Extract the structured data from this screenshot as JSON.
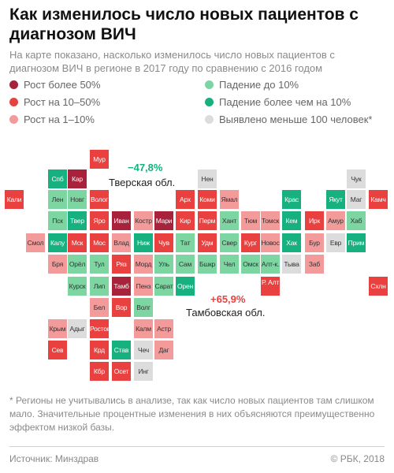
{
  "title": "Как изменилось число новых пациентов с диагнозом ВИЧ",
  "subtitle": "На карте показано, насколько изменилось число новых пациентов с диагнозом ВИЧ в регионе в 2017 году по сравнению с 2016 годом",
  "colors": {
    "growth_over_50": "#a7223a",
    "growth_10_50": "#e8413f",
    "growth_1_10": "#f39a9a",
    "decline_up_to_10": "#7dd6a2",
    "decline_over_10": "#17b07f",
    "under_100": "#dcdcdc"
  },
  "legend": [
    {
      "key": "growth_over_50",
      "label": "Рост более 50%"
    },
    {
      "key": "growth_10_50",
      "label": "Рост на 10–50%"
    },
    {
      "key": "growth_1_10",
      "label": "Рост на 1–10%"
    },
    {
      "key": "decline_up_to_10",
      "label": "Падение до 10%"
    },
    {
      "key": "decline_over_10",
      "label": "Падение более чем на 10%"
    },
    {
      "key": "under_100",
      "label": "Выявлено меньше 100 человек*"
    }
  ],
  "regions": [
    {
      "label": "Мур",
      "cat": "growth_10_50"
    },
    {
      "label": "Спб",
      "cat": "decline_over_10"
    },
    {
      "label": "Кар",
      "cat": "growth_over_50"
    },
    {
      "label": "Нен",
      "cat": "under_100"
    },
    {
      "label": "Чук",
      "cat": "under_100"
    },
    {
      "label": "Кали",
      "cat": "growth_10_50"
    },
    {
      "label": "Лен",
      "cat": "decline_up_to_10"
    },
    {
      "label": "Новг",
      "cat": "decline_up_to_10"
    },
    {
      "label": "Волог",
      "cat": "growth_10_50"
    },
    {
      "label": "Арх",
      "cat": "growth_10_50"
    },
    {
      "label": "Коми",
      "cat": "growth_10_50"
    },
    {
      "label": "Ямал",
      "cat": "growth_1_10"
    },
    {
      "label": "Крас",
      "cat": "decline_over_10"
    },
    {
      "label": "Якут",
      "cat": "decline_over_10"
    },
    {
      "label": "Маг",
      "cat": "under_100"
    },
    {
      "label": "Камч",
      "cat": "growth_10_50"
    },
    {
      "label": "Пск",
      "cat": "decline_up_to_10"
    },
    {
      "label": "Твер",
      "cat": "decline_over_10"
    },
    {
      "label": "Яро",
      "cat": "growth_10_50"
    },
    {
      "label": "Иван",
      "cat": "growth_over_50"
    },
    {
      "label": "Костр",
      "cat": "growth_1_10"
    },
    {
      "label": "Мари",
      "cat": "growth_over_50"
    },
    {
      "label": "Кир",
      "cat": "growth_10_50"
    },
    {
      "label": "Перм",
      "cat": "growth_10_50"
    },
    {
      "label": "Хант",
      "cat": "decline_up_to_10"
    },
    {
      "label": "Тюм",
      "cat": "growth_1_10"
    },
    {
      "label": "Томск",
      "cat": "growth_1_10"
    },
    {
      "label": "Кем",
      "cat": "decline_over_10"
    },
    {
      "label": "Ирк",
      "cat": "growth_10_50"
    },
    {
      "label": "Амур",
      "cat": "growth_1_10"
    },
    {
      "label": "Хаб",
      "cat": "decline_up_to_10"
    },
    {
      "label": "Смол",
      "cat": "growth_1_10"
    },
    {
      "label": "Калу",
      "cat": "decline_over_10"
    },
    {
      "label": "Мск",
      "cat": "growth_10_50"
    },
    {
      "label": "Мос",
      "cat": "growth_10_50"
    },
    {
      "label": "Влад",
      "cat": "growth_1_10"
    },
    {
      "label": "Ниж",
      "cat": "decline_over_10"
    },
    {
      "label": "Чув",
      "cat": "growth_10_50"
    },
    {
      "label": "Тат",
      "cat": "decline_up_to_10"
    },
    {
      "label": "Удм",
      "cat": "growth_10_50"
    },
    {
      "label": "Свер",
      "cat": "decline_up_to_10"
    },
    {
      "label": "Кург",
      "cat": "growth_10_50"
    },
    {
      "label": "Новос",
      "cat": "growth_1_10"
    },
    {
      "label": "Хак",
      "cat": "decline_over_10"
    },
    {
      "label": "Бур",
      "cat": "growth_1_10"
    },
    {
      "label": "Евр",
      "cat": "under_100"
    },
    {
      "label": "Прим",
      "cat": "decline_over_10"
    },
    {
      "label": "Бря",
      "cat": "growth_1_10"
    },
    {
      "label": "Орёл",
      "cat": "decline_up_to_10"
    },
    {
      "label": "Тул",
      "cat": "decline_up_to_10"
    },
    {
      "label": "Ряз",
      "cat": "growth_10_50"
    },
    {
      "label": "Морд",
      "cat": "growth_1_10"
    },
    {
      "label": "Уль",
      "cat": "decline_up_to_10"
    },
    {
      "label": "Сам",
      "cat": "decline_up_to_10"
    },
    {
      "label": "Бшкр",
      "cat": "decline_up_to_10"
    },
    {
      "label": "Чел",
      "cat": "decline_up_to_10"
    },
    {
      "label": "Омск",
      "cat": "decline_up_to_10"
    },
    {
      "label": "Алт-к.",
      "cat": "decline_up_to_10"
    },
    {
      "label": "Тыва",
      "cat": "under_100"
    },
    {
      "label": "Заб",
      "cat": "growth_1_10"
    },
    {
      "label": "Курск",
      "cat": "decline_up_to_10"
    },
    {
      "label": "Лип",
      "cat": "decline_up_to_10"
    },
    {
      "label": "Тамб",
      "cat": "growth_over_50"
    },
    {
      "label": "Пенз",
      "cat": "growth_1_10"
    },
    {
      "label": "Сарат",
      "cat": "decline_up_to_10"
    },
    {
      "label": "Орен",
      "cat": "decline_over_10"
    },
    {
      "label": "Р. Алт",
      "cat": "growth_10_50"
    },
    {
      "label": "Схлн",
      "cat": "growth_10_50"
    },
    {
      "label": "Бел",
      "cat": "growth_1_10"
    },
    {
      "label": "Вор",
      "cat": "growth_10_50"
    },
    {
      "label": "Волг",
      "cat": "decline_up_to_10"
    },
    {
      "label": "Крым",
      "cat": "growth_1_10"
    },
    {
      "label": "Адыг",
      "cat": "under_100"
    },
    {
      "label": "Ростов",
      "cat": "growth_10_50"
    },
    {
      "label": "Калм",
      "cat": "growth_1_10"
    },
    {
      "label": "Астр",
      "cat": "growth_1_10"
    },
    {
      "label": "Сев",
      "cat": "growth_10_50"
    },
    {
      "label": "Крд",
      "cat": "growth_10_50"
    },
    {
      "label": "Став",
      "cat": "decline_over_10"
    },
    {
      "label": "Чеч",
      "cat": "under_100"
    },
    {
      "label": "Даг",
      "cat": "growth_1_10"
    },
    {
      "label": "Кбр",
      "cat": "growth_10_50"
    },
    {
      "label": "Осет",
      "cat": "growth_10_50"
    },
    {
      "label": "Инг",
      "cat": "under_100"
    }
  ],
  "annotations": [
    {
      "value": "−47,8%",
      "label": "Тверская обл.",
      "color": "#17b07f"
    },
    {
      "value": "+65,9%",
      "label": "Тамбовская обл.",
      "color": "#e8413f"
    }
  ],
  "footnote": "* Регионы не учитывались в анализе, так как число новых пациентов там слишком мало. Значительные процентные изменения в них объясняются преимущественно эффектом низкой базы.",
  "source": "Источник: Минздрав",
  "copyright": "© РБК, 2018"
}
